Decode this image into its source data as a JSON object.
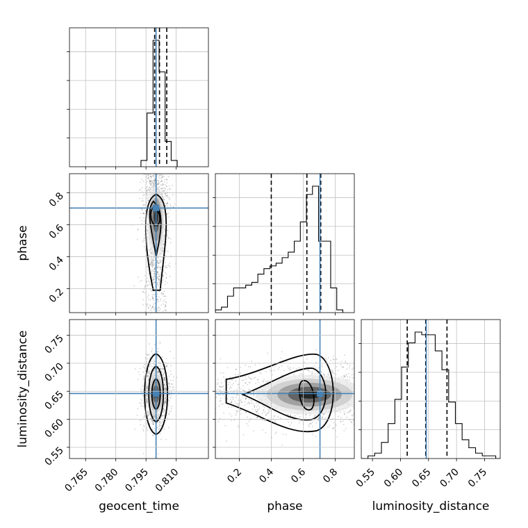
{
  "chart_data": {
    "type": "corner",
    "parameters": [
      {
        "name": "geocent_time",
        "axis_label": "geocent_time",
        "range": [
          0.757,
          0.826
        ],
        "ticks": [
          0.765,
          0.78,
          0.795,
          0.81
        ],
        "tick_labels": [
          "0.765",
          "0.780",
          "0.795",
          "0.810"
        ],
        "truth": 0.8,
        "quantiles": [
          0.7993,
          0.8017,
          0.8053
        ]
      },
      {
        "name": "phase",
        "axis_label": "phase",
        "range": [
          0.05,
          0.92
        ],
        "ticks": [
          0.2,
          0.4,
          0.6,
          0.8
        ],
        "tick_labels": [
          "0.2",
          "0.4",
          "0.6",
          "0.8"
        ],
        "truth": 0.705,
        "quantiles": [
          0.4,
          0.623,
          0.71
        ]
      },
      {
        "name": "luminosity_distance",
        "axis_label": "luminosity_distance",
        "range": [
          0.53,
          0.778
        ],
        "ticks": [
          0.55,
          0.6,
          0.65,
          0.7,
          0.75
        ],
        "tick_labels": [
          "0.55",
          "0.60",
          "0.65",
          "0.70",
          "0.75"
        ],
        "truth": 0.646,
        "quantiles": [
          0.612,
          0.645,
          0.683
        ]
      }
    ],
    "histograms": {
      "geocent_time": {
        "bin_edges": [
          0.7925,
          0.7955,
          0.7985,
          0.8015,
          0.8045,
          0.8075,
          0.8105
        ],
        "counts": [
          2,
          17,
          40,
          30,
          8,
          2
        ]
      },
      "phase": {
        "bin_edges": [
          0.05,
          0.088,
          0.126,
          0.164,
          0.202,
          0.24,
          0.278,
          0.316,
          0.354,
          0.392,
          0.43,
          0.468,
          0.506,
          0.544,
          0.582,
          0.62,
          0.658,
          0.696,
          0.734,
          0.772,
          0.81,
          0.848
        ],
        "counts": [
          1,
          2,
          6,
          9,
          9,
          10,
          11,
          14,
          16,
          17,
          18,
          20,
          22,
          26,
          33,
          43,
          46,
          26,
          26,
          9,
          1
        ]
      },
      "luminosity_distance": {
        "bin_edges": [
          0.53,
          0.542,
          0.554,
          0.566,
          0.578,
          0.59,
          0.602,
          0.614,
          0.626,
          0.638,
          0.65,
          0.662,
          0.674,
          0.686,
          0.698,
          0.71,
          0.722,
          0.734,
          0.746,
          0.758,
          0.77,
          0.778
        ],
        "counts": [
          0,
          1,
          2,
          6,
          13,
          22,
          34,
          43,
          47,
          46,
          46,
          40,
          33,
          21,
          13,
          7,
          4,
          2,
          1,
          1,
          0
        ]
      }
    },
    "panels_2d": [
      {
        "x": "geocent_time",
        "y": "phase",
        "peak": [
          0.8,
          0.66
        ]
      },
      {
        "x": "geocent_time",
        "y": "luminosity_distance",
        "peak": [
          0.8,
          0.645
        ]
      },
      {
        "x": "phase",
        "y": "luminosity_distance",
        "peak": [
          0.64,
          0.644
        ]
      }
    ],
    "truth_color": "#4682b4",
    "grid": true
  }
}
